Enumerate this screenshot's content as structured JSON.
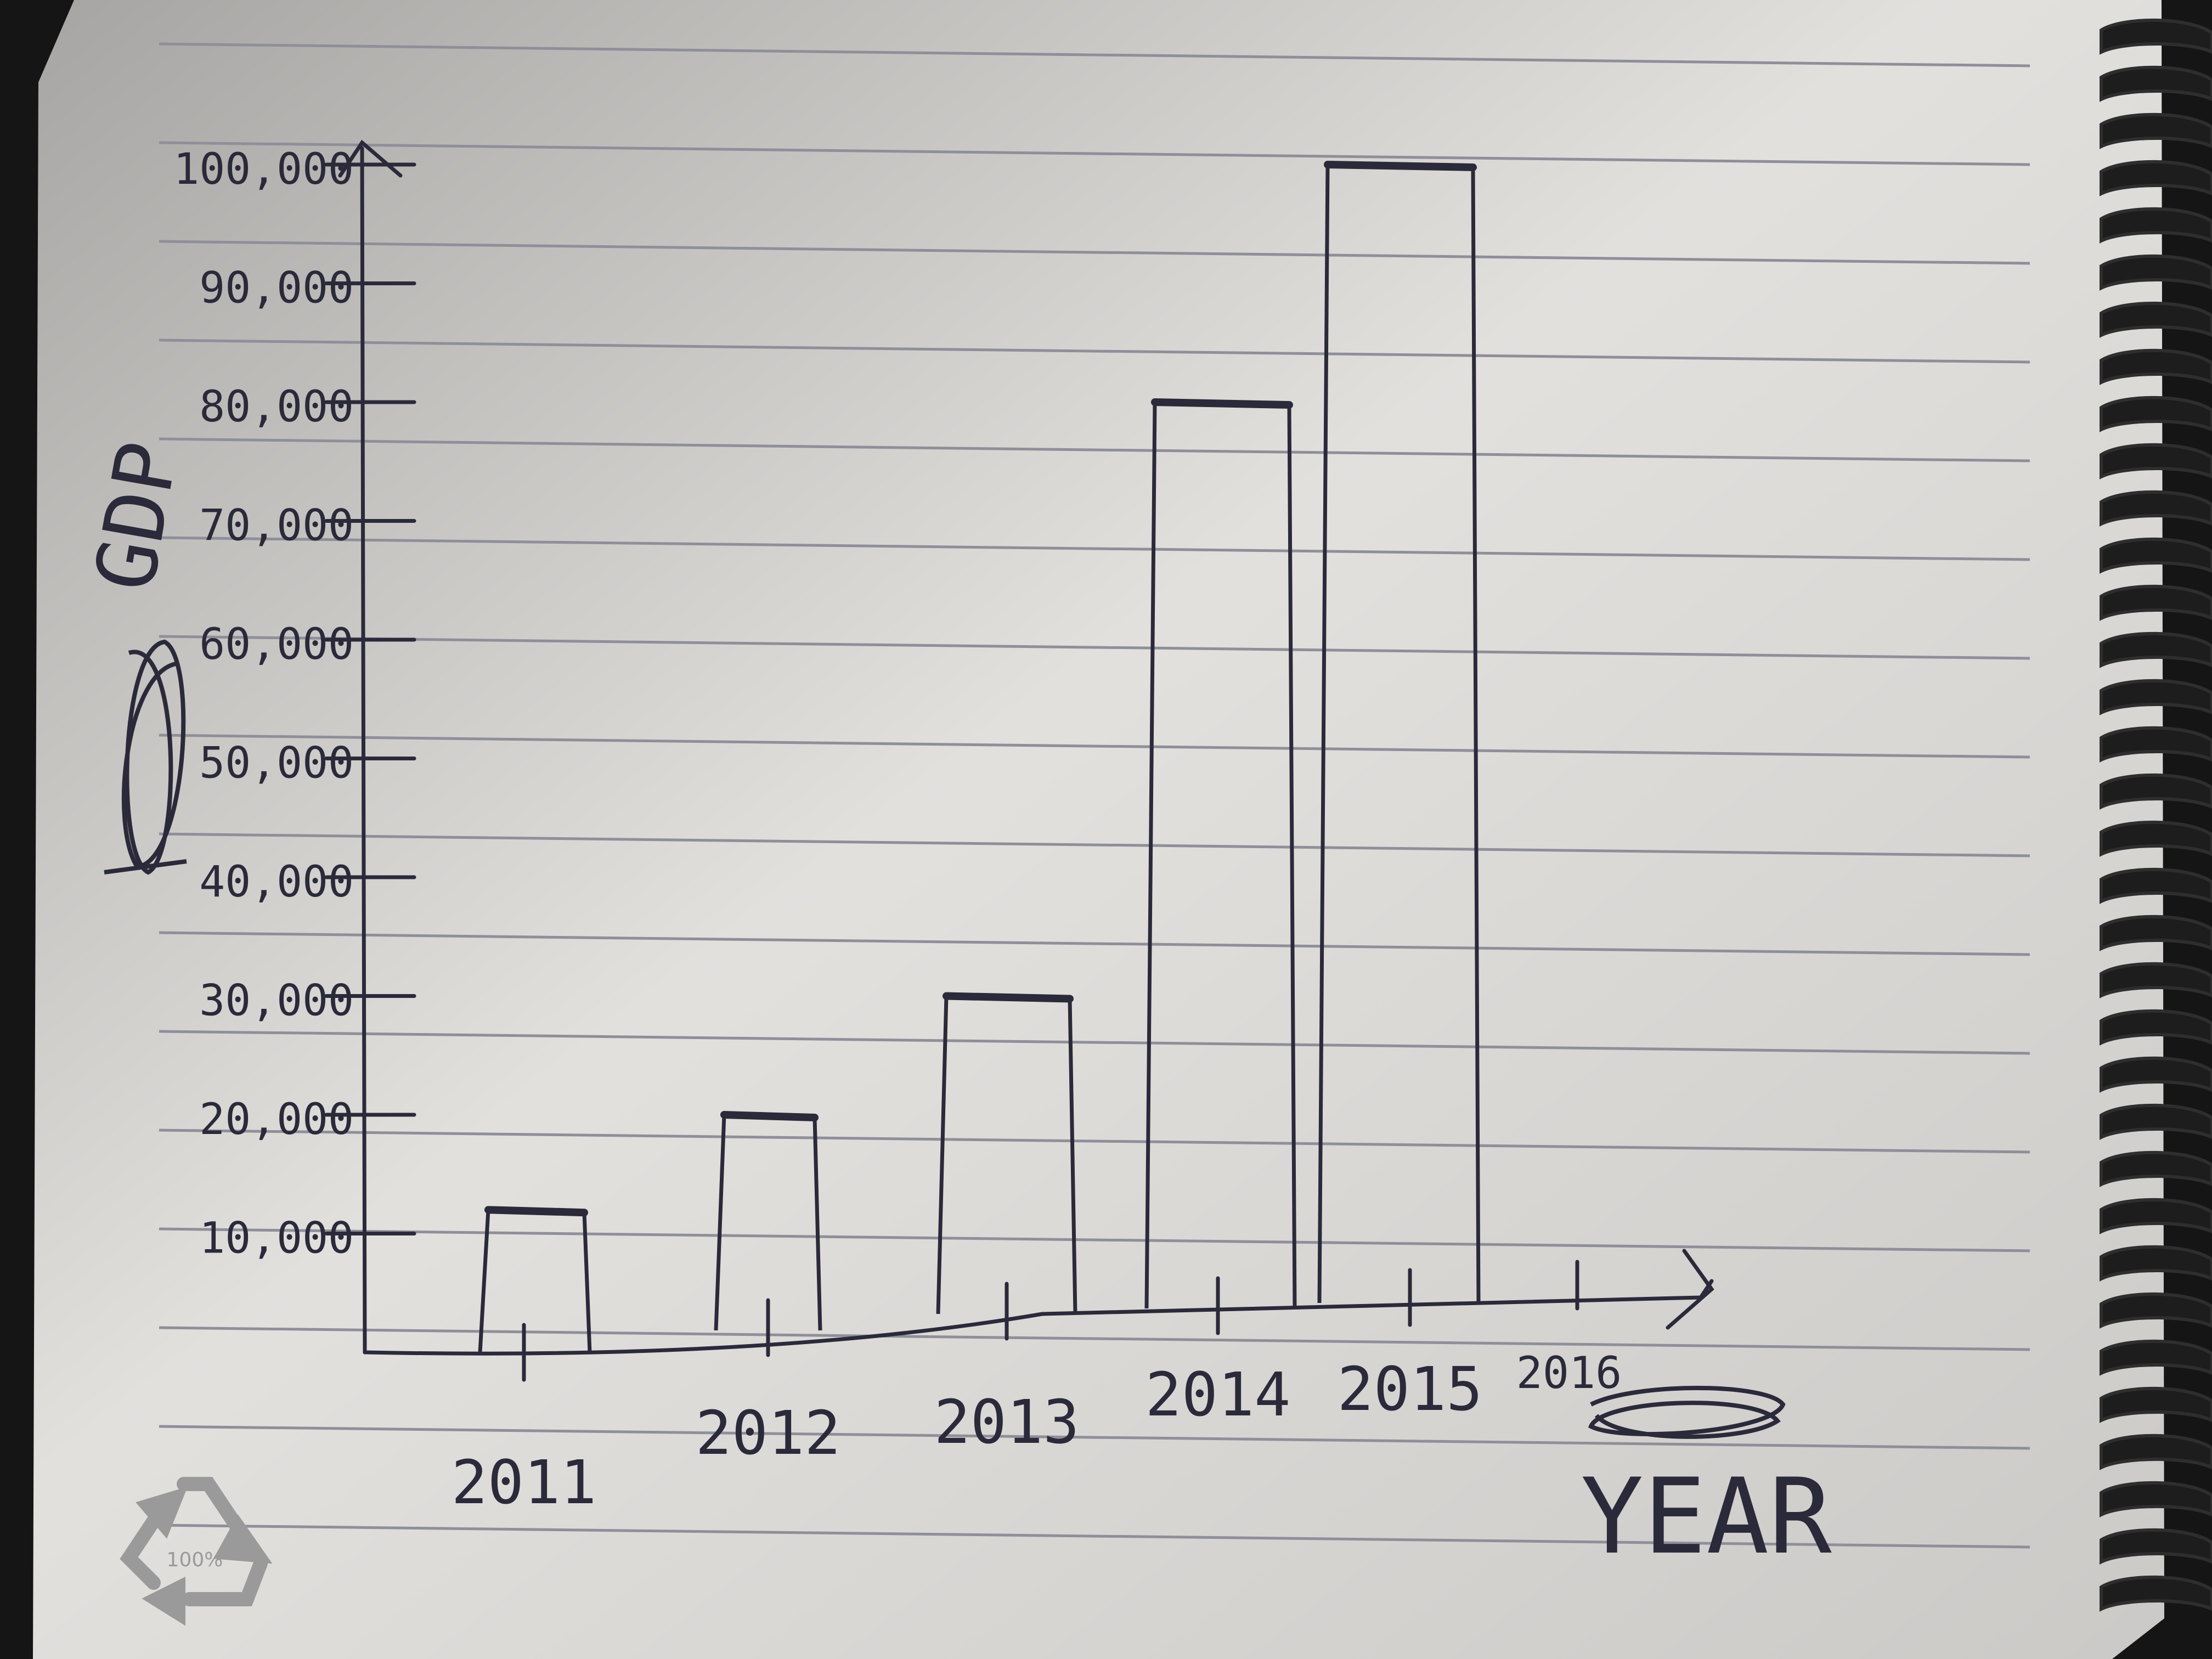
{
  "chart_data": {
    "type": "bar",
    "categories": [
      "2011",
      "2012",
      "2013",
      "2014",
      "2015"
    ],
    "values": [
      12000,
      20000,
      30000,
      80000,
      100000
    ],
    "title": "",
    "xlabel": "YEAR",
    "ylabel": "GDP",
    "ylim": [
      0,
      100000
    ],
    "yticks": [
      "10,000",
      "20,000",
      "30,000",
      "40,000",
      "50,000",
      "60,000",
      "70,000",
      "80,000",
      "90,000",
      "100,000"
    ],
    "extra_x_tick": "2016",
    "grid": false,
    "legend": "none"
  },
  "colors": {
    "paper": "#e7e5e2",
    "ruled_line": "#8f8f9a",
    "ink": "#2b2a3a",
    "spiral": "#1d1d1d",
    "background": "#151515"
  },
  "decor": {
    "recycle_icon": "recycle-icon",
    "recycle_text": "100%"
  }
}
